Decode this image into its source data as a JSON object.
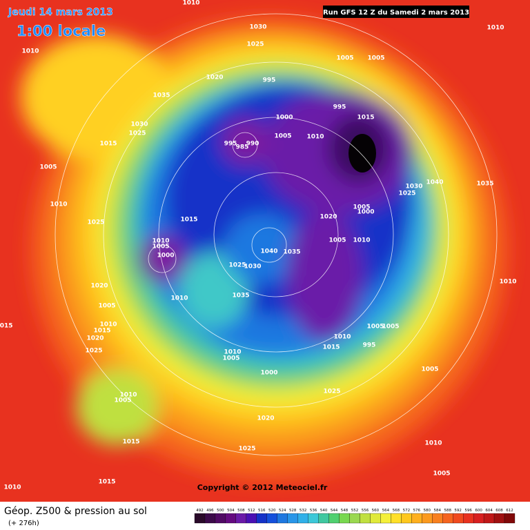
{
  "header": {
    "date": "Jeudi 14 mars 2013",
    "time": "1:00 locale",
    "run": "Run GFS 12 Z du Samedi 2 mars 2013"
  },
  "copyright": "Copyright © 2012 Meteociel.fr",
  "footer": {
    "title": "Géop. Z500 & pression au sol",
    "subtitle": "(+ 276h)"
  },
  "scale": [
    492,
    496,
    500,
    504,
    508,
    512,
    516,
    520,
    524,
    528,
    532,
    536,
    540,
    544,
    548,
    552,
    556,
    560,
    564,
    568,
    572,
    576,
    580,
    584,
    588,
    592,
    596,
    600,
    604,
    608,
    612
  ],
  "isobar_labels": [
    "1010",
    "1030",
    "1025",
    "1010",
    "1005",
    "1005",
    "1010",
    "1020",
    "995",
    "1035",
    "995",
    "1000",
    "1015",
    "1030",
    "1025",
    "1005",
    "1010",
    "995",
    "985",
    "990",
    "1015",
    "1005",
    "1030",
    "1040",
    "1035",
    "1025",
    "1010",
    "1005",
    "1000",
    "1025",
    "1015",
    "1020",
    "1010",
    "1005",
    "1000",
    "1040",
    "1035",
    "1005",
    "1010",
    "1025",
    "1030",
    "1010",
    "1020",
    "1035",
    "1010",
    "1005",
    "1010",
    "1015",
    "1005",
    "1005",
    "1015",
    "1010",
    "995",
    "1015",
    "1020",
    "1025",
    "1010",
    "1005",
    "1000",
    "1005",
    "1025",
    "1010",
    "1005",
    "1020",
    "1015",
    "1010",
    "1025",
    "1005",
    "1015",
    "1010"
  ]
}
